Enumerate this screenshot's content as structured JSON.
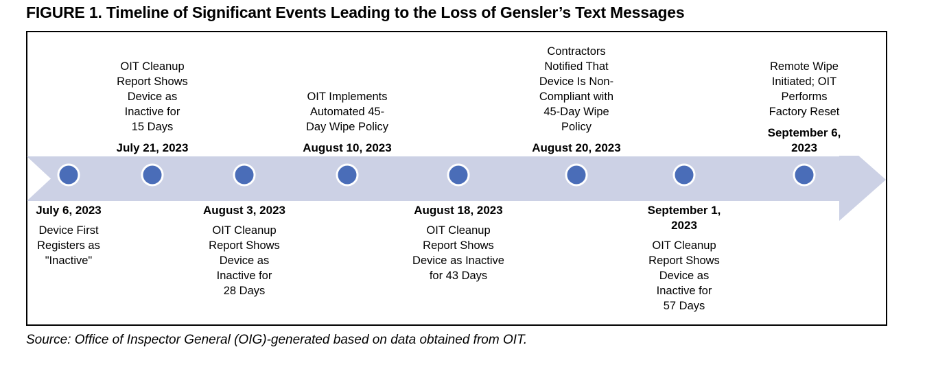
{
  "page": {
    "title": "FIGURE 1. Timeline of Significant Events Leading to the Loss of Gensler’s Text Messages",
    "source_note": "Source: Office of Inspector General (OIG)-generated based on data obtained from OIT."
  },
  "colors": {
    "arrow_fill": "#ccd1e5",
    "marker_fill": "#4a6db8",
    "marker_ring": "#ffffff",
    "frame_border": "#000000"
  },
  "timeline": {
    "type": "timeline",
    "direction": "left-to-right",
    "events": [
      {
        "date": "July 6, 2023",
        "side": "below",
        "description": "Device First\nRegisters as\n\"Inactive\""
      },
      {
        "date": "July 21, 2023",
        "side": "above",
        "description": "OIT Cleanup\nReport Shows\nDevice as\nInactive for\n15 Days"
      },
      {
        "date": "August 3, 2023",
        "side": "below",
        "description": "OIT Cleanup\nReport Shows\nDevice as\nInactive for\n28 Days"
      },
      {
        "date": "August 10, 2023",
        "side": "above",
        "description": "OIT Implements\nAutomated 45-\nDay Wipe Policy"
      },
      {
        "date": "August 18, 2023",
        "side": "below",
        "description": "OIT Cleanup\nReport Shows\nDevice as Inactive\nfor 43 Days"
      },
      {
        "date": "August 20, 2023",
        "side": "above",
        "description": "Contractors\nNotified That\nDevice Is Non-\nCompliant with\n45-Day Wipe\nPolicy"
      },
      {
        "date": "September 1,\n2023",
        "side": "below",
        "description": "OIT Cleanup\nReport Shows\nDevice as\nInactive for\n57 Days"
      },
      {
        "date": "September 6,\n2023",
        "side": "above",
        "description": "Remote Wipe\nInitiated; OIT\nPerforms\nFactory Reset"
      }
    ]
  }
}
